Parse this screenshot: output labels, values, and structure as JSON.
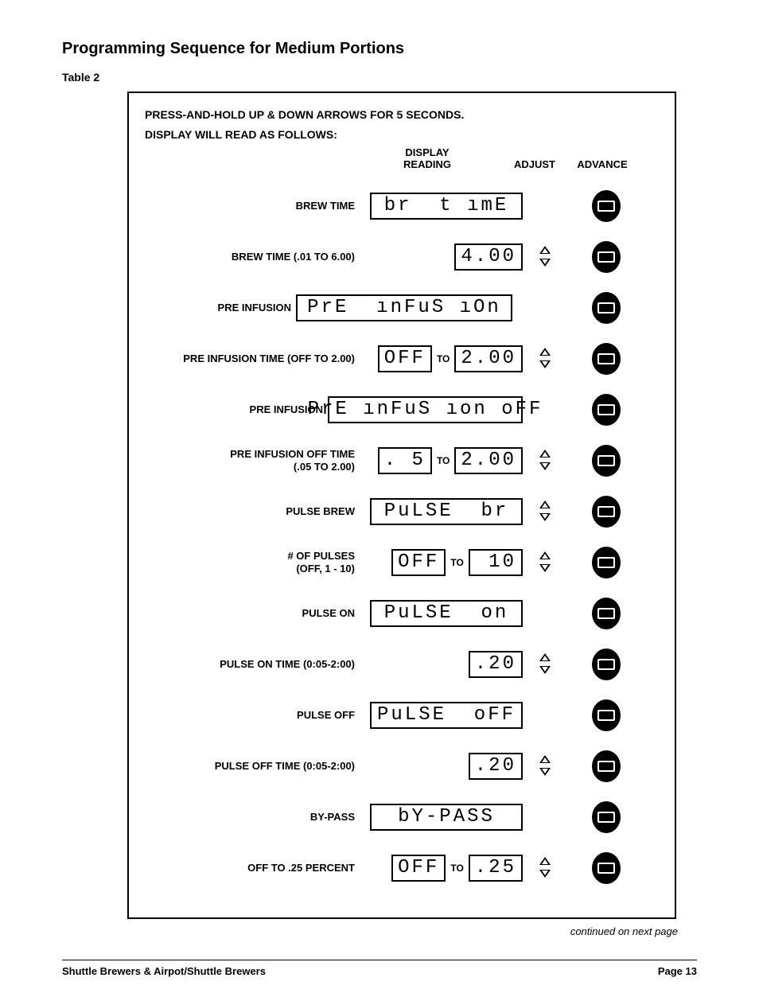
{
  "title": "Programming Sequence for Medium Portions",
  "table_label": "Table 2",
  "instructions_l1": "PRESS-AND-HOLD UP & DOWN ARROWS FOR 5 SECONDS.",
  "instructions_l2": "DISPLAY WILL READ AS FOLLOWS:",
  "headers": {
    "display": "DISPLAY\nREADING",
    "adjust": "ADJUST",
    "advance": "ADVANCE"
  },
  "to_text": "TO",
  "rows": [
    {
      "label": "BREW TIME",
      "display_type": "wide",
      "seg1": "br  t ımE",
      "adjust": false
    },
    {
      "label": "BREW TIME (.01 TO 6.00)",
      "display_type": "single_med",
      "seg1": "4.00",
      "adjust": true
    },
    {
      "label": "PRE INFUSION",
      "display_type": "wide_offset",
      "offset": -80,
      "seg1": "PrE  ınFuS ıOn",
      "adjust": false
    },
    {
      "label": "PRE INFUSION TIME (OFF TO 2.00)",
      "display_type": "range",
      "seg1": "OFF",
      "seg2": "2.00",
      "adjust": true
    },
    {
      "label": "PRE INFUSION",
      "display_type": "wide_offset",
      "offset": -40,
      "seg1": "PrE ınFuS ıon oFF",
      "adjust": false
    },
    {
      "label": "PRE INFUSION OFF TIME\n(.05 TO 2.00)",
      "display_type": "range",
      "seg1": ". 5",
      "seg2": "2.00",
      "adjust": true
    },
    {
      "label": "PULSE BREW",
      "display_type": "wide",
      "seg1": "PuLSE  br",
      "adjust": true
    },
    {
      "label": "# OF PULSES\n(OFF, 1 - 10)",
      "display_type": "range",
      "seg1": "OFF",
      "seg2": " 10",
      "adjust": true
    },
    {
      "label": "PULSE ON",
      "display_type": "wide",
      "seg1": "PuLSE  on",
      "adjust": false
    },
    {
      "label": "PULSE ON TIME (0:05-2:00)",
      "display_type": "single_sm",
      "seg1": ".20",
      "adjust": true
    },
    {
      "label": "PULSE OFF",
      "display_type": "wide",
      "seg1": "PuLSE  oFF",
      "adjust": false
    },
    {
      "label": "PULSE OFF TIME (0:05-2:00)",
      "display_type": "single_sm",
      "seg1": ".20",
      "adjust": true
    },
    {
      "label": "BY-PASS",
      "display_type": "wide",
      "seg1": "bY-PASS",
      "adjust": false
    },
    {
      "label": "OFF TO .25 PERCENT",
      "display_type": "range",
      "seg1": "OFF",
      "seg2": ".25",
      "adjust": true
    }
  ],
  "continued": "continued on next page",
  "footer_left": "Shuttle Brewers & Airpot/Shuttle Brewers",
  "footer_right": "Page 13"
}
